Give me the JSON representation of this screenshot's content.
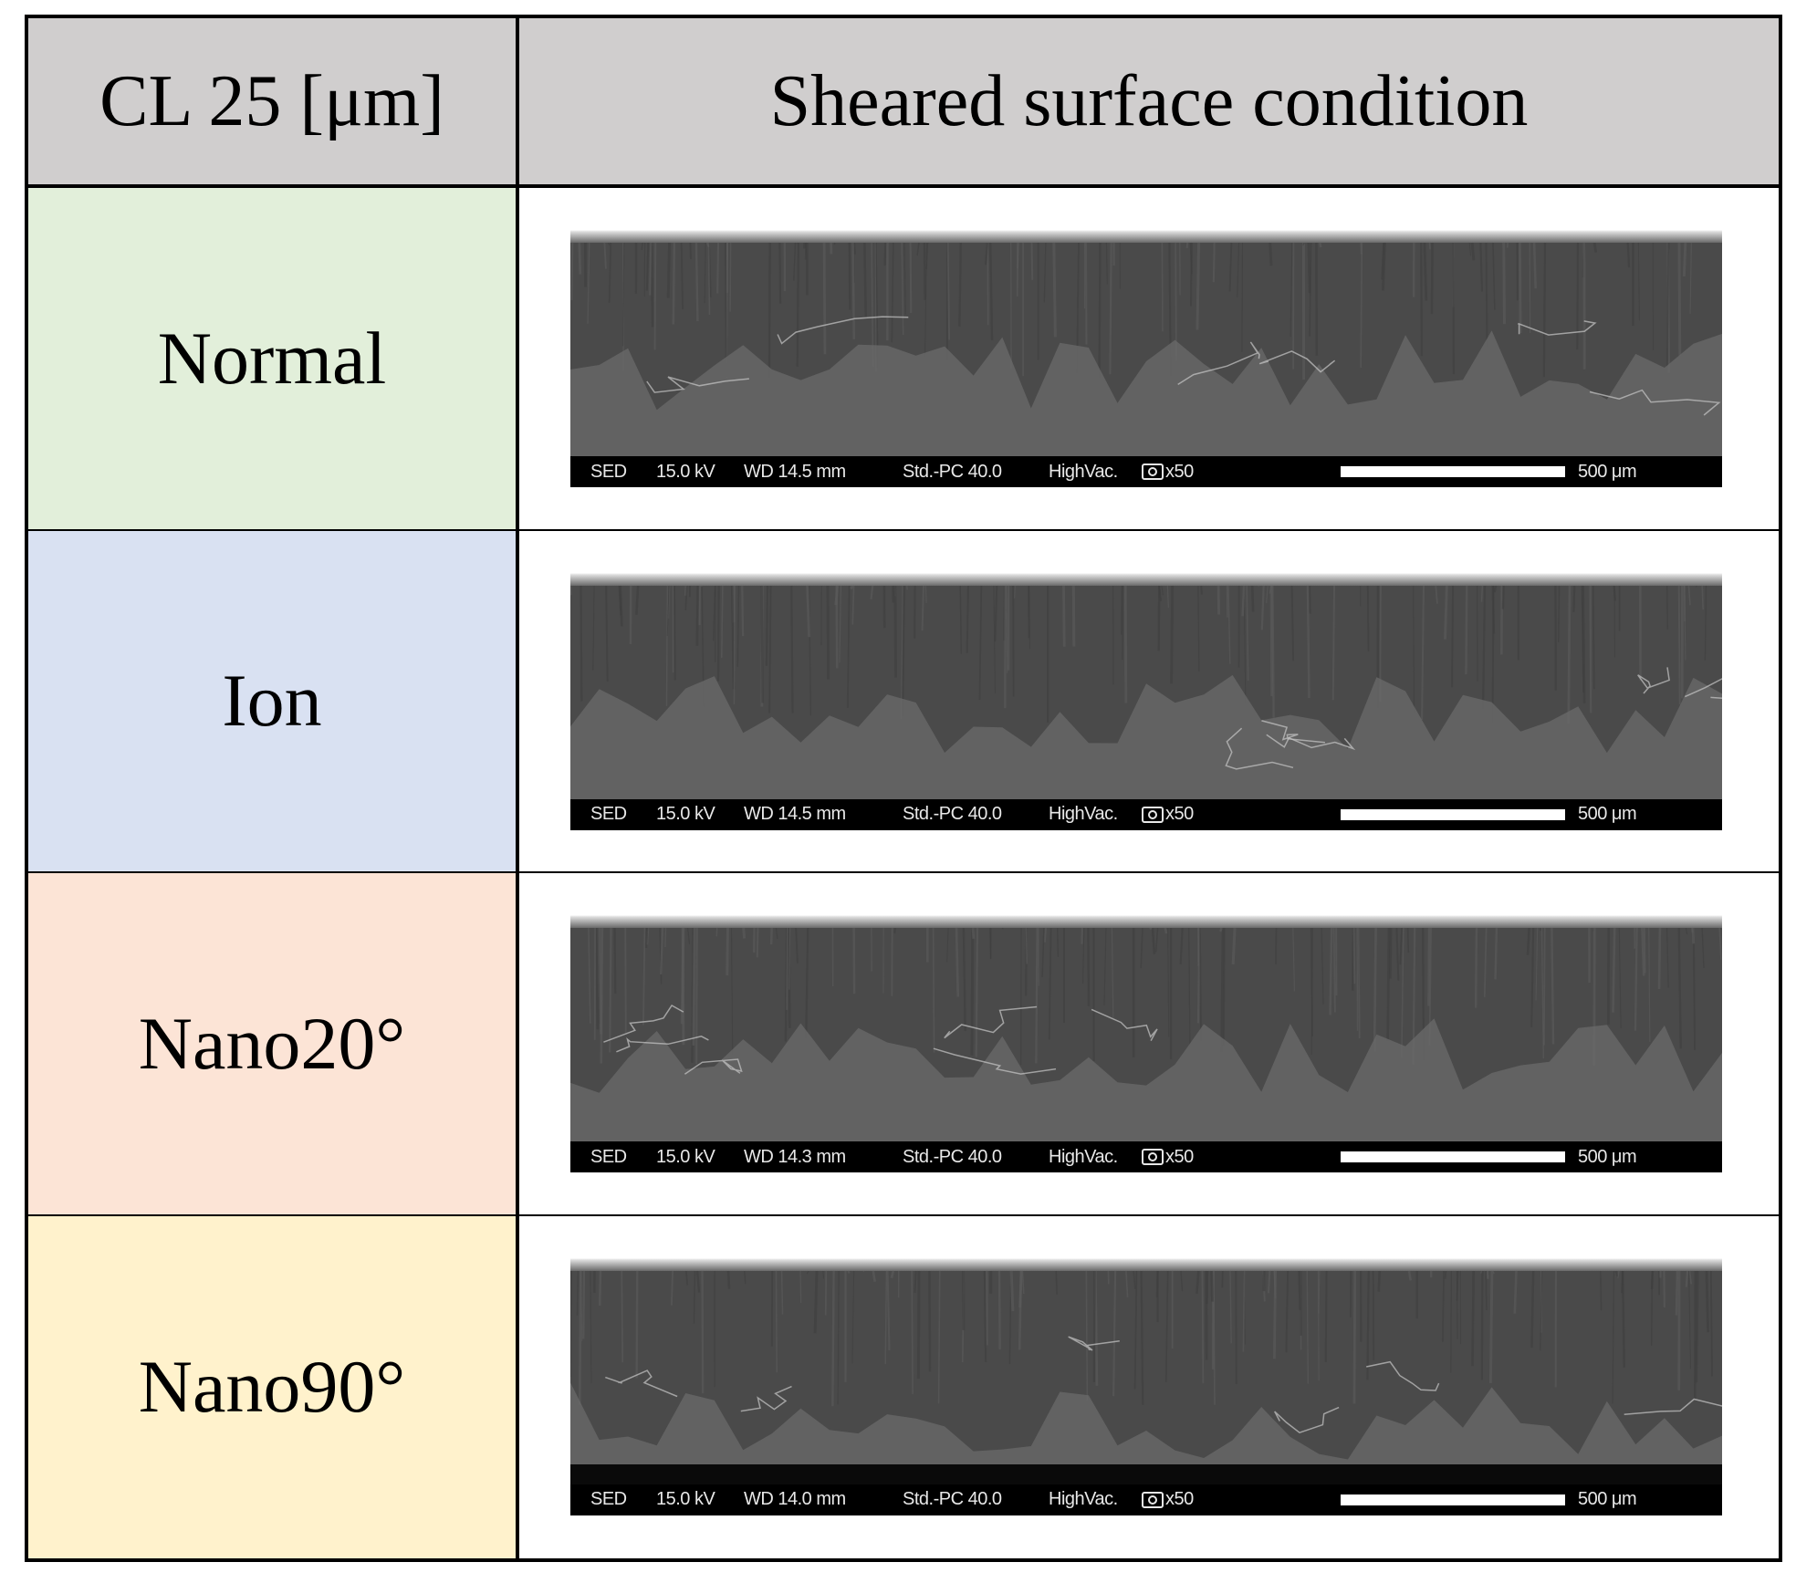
{
  "table": {
    "header": {
      "col1": "CL 25 [μm]",
      "col2": "Sheared surface condition"
    },
    "rows": [
      {
        "label": "Normal",
        "color": "#e2efda",
        "sem": {
          "detector": "SED",
          "voltage": "15.0 kV",
          "wd": "WD 14.5 mm",
          "mode": "Std.-PC 40.0",
          "vacuum": "HighVac.",
          "mag": "x50",
          "scale": "500 μm"
        }
      },
      {
        "label": "Ion",
        "color": "#d9e1f2",
        "sem": {
          "detector": "SED",
          "voltage": "15.0 kV",
          "wd": "WD 14.5 mm",
          "mode": "Std.-PC 40.0",
          "vacuum": "HighVac.",
          "mag": "x50",
          "scale": "500 μm"
        }
      },
      {
        "label": "Nano20°",
        "color": "#fce4d6",
        "sem": {
          "detector": "SED",
          "voltage": "15.0 kV",
          "wd": "WD 14.3 mm",
          "mode": "Std.-PC 40.0",
          "vacuum": "HighVac.",
          "mag": "x50",
          "scale": "500 μm"
        }
      },
      {
        "label": "Nano90°",
        "color": "#fff2cc",
        "sem": {
          "detector": "SED",
          "voltage": "15.0 kV",
          "wd": "WD 14.0 mm",
          "mode": "Std.-PC 40.0",
          "vacuum": "HighVac.",
          "mag": "x50",
          "scale": "500 μm"
        }
      }
    ]
  }
}
